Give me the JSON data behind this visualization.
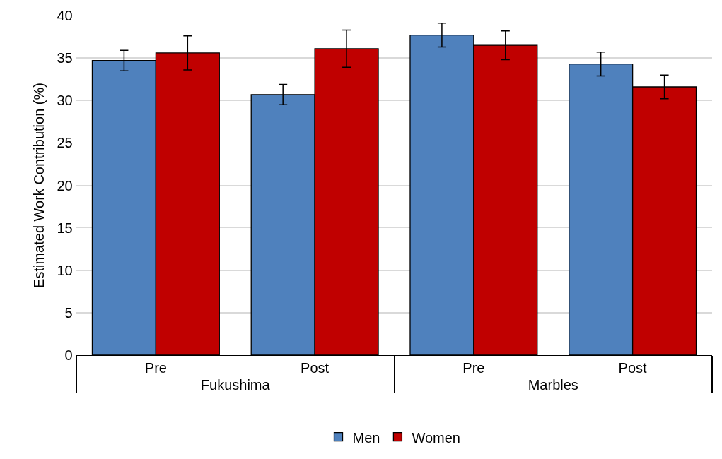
{
  "chart_data": {
    "type": "bar",
    "ylabel": "Estimated Work Contribution (%)",
    "categories": [
      "Pre",
      "Post",
      "Pre",
      "Post"
    ],
    "annotations": [
      "Fukushima",
      "Marbles"
    ],
    "series": [
      {
        "name": "Men",
        "color": "#4f81bd",
        "values": [
          34.7,
          30.7,
          37.7,
          34.3
        ],
        "errors": [
          1.2,
          1.2,
          1.4,
          1.4
        ]
      },
      {
        "name": "Women",
        "color": "#c00000",
        "values": [
          35.6,
          36.1,
          36.5,
          31.6
        ],
        "errors": [
          2.0,
          2.2,
          1.7,
          1.4
        ]
      }
    ],
    "ylim": [
      0,
      40
    ],
    "yticks": [
      0,
      5,
      10,
      15,
      20,
      25,
      30,
      35,
      40
    ],
    "grid": "y",
    "legend": "bottom"
  }
}
